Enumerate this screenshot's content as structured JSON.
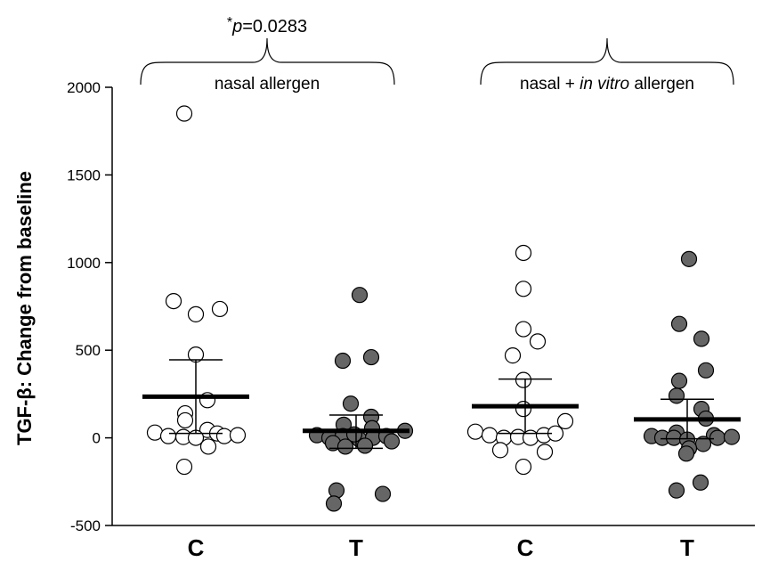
{
  "chart_data": {
    "type": "scatter",
    "ylabel": "TGF-β: Change from baseline",
    "ylim": [
      -500,
      2000
    ],
    "yticks": [
      -500,
      0,
      500,
      1000,
      1500,
      2000
    ],
    "categories": [
      "C",
      "T",
      "C",
      "T"
    ],
    "groups": [
      {
        "label": "nasal allergen",
        "categories": [
          0,
          1
        ]
      },
      {
        "label": "nasal + in vitro allergen",
        "label_pre": "nasal + ",
        "label_italic": "in vitro",
        "label_post": " allergen",
        "categories": [
          2,
          3
        ]
      }
    ],
    "annotation": {
      "star": "*",
      "p_letter": "p",
      "value": "=0.0283"
    },
    "series": [
      {
        "category": 0,
        "fill": "#ffffff",
        "mean": 235,
        "sem_upper": 445,
        "sem_lower": 25,
        "points": [
          {
            "dx": -13,
            "y": 1850
          },
          {
            "dx": -25,
            "y": 780
          },
          {
            "dx": 0,
            "y": 705
          },
          {
            "dx": 27,
            "y": 735
          },
          {
            "dx": 0,
            "y": 475
          },
          {
            "dx": 13,
            "y": 215
          },
          {
            "dx": -12,
            "y": 140
          },
          {
            "dx": -12,
            "y": 100
          },
          {
            "dx": 13,
            "y": 45
          },
          {
            "dx": -46,
            "y": 30
          },
          {
            "dx": 24,
            "y": 25
          },
          {
            "dx": -31,
            "y": 10
          },
          {
            "dx": -14,
            "y": 5
          },
          {
            "dx": 0,
            "y": 0
          },
          {
            "dx": 32,
            "y": 10
          },
          {
            "dx": 47,
            "y": 15
          },
          {
            "dx": 14,
            "y": -50
          },
          {
            "dx": -13,
            "y": -165
          }
        ]
      },
      {
        "category": 1,
        "fill": "#666666",
        "mean": 40,
        "sem_upper": 130,
        "sem_lower": -60,
        "points": [
          {
            "dx": 4,
            "y": 815
          },
          {
            "dx": -15,
            "y": 440
          },
          {
            "dx": 17,
            "y": 460
          },
          {
            "dx": -6,
            "y": 195
          },
          {
            "dx": 17,
            "y": 120
          },
          {
            "dx": -14,
            "y": 75
          },
          {
            "dx": 18,
            "y": 55
          },
          {
            "dx": -44,
            "y": 15
          },
          {
            "dx": -30,
            "y": 0
          },
          {
            "dx": -15,
            "y": 10
          },
          {
            "dx": 4,
            "y": -10
          },
          {
            "dx": 19,
            "y": 0
          },
          {
            "dx": 34,
            "y": 10
          },
          {
            "dx": 55,
            "y": 40
          },
          {
            "dx": -2,
            "y": 20
          },
          {
            "dx": -26,
            "y": -30
          },
          {
            "dx": -12,
            "y": -50
          },
          {
            "dx": 10,
            "y": -45
          },
          {
            "dx": 40,
            "y": -20
          },
          {
            "dx": -22,
            "y": -300
          },
          {
            "dx": 30,
            "y": -320
          },
          {
            "dx": -25,
            "y": -375
          }
        ]
      },
      {
        "category": 2,
        "fill": "#ffffff",
        "mean": 180,
        "sem_upper": 335,
        "sem_lower": 25,
        "points": [
          {
            "dx": -2,
            "y": 1055
          },
          {
            "dx": -2,
            "y": 850
          },
          {
            "dx": -2,
            "y": 620
          },
          {
            "dx": 14,
            "y": 550
          },
          {
            "dx": -14,
            "y": 470
          },
          {
            "dx": -2,
            "y": 330
          },
          {
            "dx": -2,
            "y": 165
          },
          {
            "dx": 45,
            "y": 95
          },
          {
            "dx": -56,
            "y": 35
          },
          {
            "dx": -40,
            "y": 15
          },
          {
            "dx": -24,
            "y": 0
          },
          {
            "dx": -8,
            "y": 5
          },
          {
            "dx": 6,
            "y": 0
          },
          {
            "dx": 21,
            "y": 15
          },
          {
            "dx": 34,
            "y": 25
          },
          {
            "dx": -28,
            "y": -70
          },
          {
            "dx": 22,
            "y": -80
          },
          {
            "dx": -2,
            "y": -165
          }
        ]
      },
      {
        "category": 3,
        "fill": "#666666",
        "mean": 105,
        "sem_upper": 220,
        "sem_lower": -5,
        "points": [
          {
            "dx": 2,
            "y": 1020
          },
          {
            "dx": -9,
            "y": 650
          },
          {
            "dx": 16,
            "y": 565
          },
          {
            "dx": 21,
            "y": 385
          },
          {
            "dx": -9,
            "y": 325
          },
          {
            "dx": -12,
            "y": 240
          },
          {
            "dx": 16,
            "y": 165
          },
          {
            "dx": 21,
            "y": 110
          },
          {
            "dx": -12,
            "y": 30
          },
          {
            "dx": -40,
            "y": 10
          },
          {
            "dx": -28,
            "y": 0
          },
          {
            "dx": -15,
            "y": 0
          },
          {
            "dx": 0,
            "y": -10
          },
          {
            "dx": 30,
            "y": 15
          },
          {
            "dx": 18,
            "y": -35
          },
          {
            "dx": 2,
            "y": -60
          },
          {
            "dx": 34,
            "y": 0
          },
          {
            "dx": 50,
            "y": 5
          },
          {
            "dx": -1,
            "y": -90
          },
          {
            "dx": -12,
            "y": -300
          },
          {
            "dx": 15,
            "y": -255
          }
        ]
      }
    ]
  }
}
